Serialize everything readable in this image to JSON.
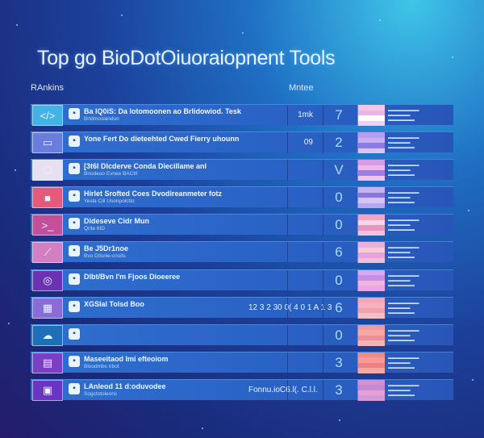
{
  "title": "Top go BioDotOiuoraiopnent Tools",
  "columns": {
    "rank": "RAnkins",
    "metric": "Mntee"
  },
  "rows": [
    {
      "icon": "code-icon",
      "thumb_bg": "#43b2e6",
      "name": "Ba IQ0iS: Da lotomoonen ao Brlidowiod. Tesk",
      "desc": "Brtdmosiandun",
      "version": "1mk",
      "digit": "7",
      "colors": [
        "#f2c6e6",
        "#e6b8e8",
        "#ffffff",
        "#f0d0f0"
      ]
    },
    {
      "icon": "monitor-icon",
      "thumb_bg": "#6a7ddc",
      "name": "Yone Fert Do dieteehted Cwed Fierry uhounn",
      "desc": "",
      "version": "09",
      "digit": "2",
      "colors": [
        "#b69df0",
        "#c7b0f2",
        "#8e7ae4",
        "#d7c6f4"
      ]
    },
    {
      "icon": "package-icon",
      "thumb_bg": "#e6e0f0",
      "name": "[3t6l Dlcderve Conda Diecillame anl",
      "desc": "Bnodeoo Evnee BACtll",
      "version": "",
      "digit": "V",
      "colors": [
        "#d69ce4",
        "#efb8ec",
        "#9b7de6",
        "#f0c2ec"
      ]
    },
    {
      "icon": "cube-icon",
      "thumb_bg": "#e55a7a",
      "name": "Hirlet Srofted Coes Dvodireanmeter fotz",
      "desc": "Yesla Cill Usonpolctto",
      "version": "",
      "digit": "0",
      "colors": [
        "#c6b2f0",
        "#8a76e0",
        "#d9c3f4",
        "#b8a6ee"
      ]
    },
    {
      "icon": "terminal-icon",
      "thumb_bg": "#c25098",
      "name": "Dideseve Cidr Mun",
      "desc": "Qrite 6ID",
      "version": "",
      "digit": "0",
      "colors": [
        "#f0a6c6",
        "#f6d6e8",
        "#e896c0",
        "#f4c0dc"
      ]
    },
    {
      "icon": "chart-icon",
      "thumb_bg": "#d47ec4",
      "name": "Be J5Dr1noe",
      "desc": "Bvo Dtlsnle-cnsits",
      "version": "",
      "digit": "6",
      "colors": [
        "#eab0dc",
        "#f6ccd8",
        "#e6a2e0",
        "#f2c0d6"
      ]
    },
    {
      "icon": "globe-icon",
      "thumb_bg": "#6b33b4",
      "name": "Dlbt/Bvn l'm Fjoos Dioeeree",
      "desc": "",
      "version": "",
      "digit": "0",
      "colors": [
        "#d9a8f0",
        "#c490e8",
        "#f0b6e0",
        "#e8a8e8"
      ]
    },
    {
      "icon": "grid-icon",
      "thumb_bg": "#8a6bd8",
      "name": "XGSIal Tolsd Boo",
      "desc": "",
      "version": "12 3 2 30 0( 4 0 1 A 1 3",
      "digit": "6",
      "colors": [
        "#f3a7b4",
        "#f6b0c0",
        "#f0a0ae",
        "#f4c0c8"
      ]
    },
    {
      "icon": "cloud-icon",
      "thumb_bg": "#1e6fb8",
      "name": "",
      "desc": "",
      "version": "",
      "digit": "0",
      "colors": [
        "#f09aa0",
        "#f6a8a6",
        "#ee8e96",
        "#f4b4b4"
      ]
    },
    {
      "icon": "api-icon",
      "thumb_bg": "#7a3fc4",
      "name": "Maseeitaod Imi efteoiom",
      "desc": "Bloodmbs trbot",
      "version": "",
      "digit": "3",
      "colors": [
        "#f08a88",
        "#f59c96",
        "#ec8086",
        "#f4a8a4"
      ]
    },
    {
      "icon": "app-icon",
      "thumb_bg": "#6a34c4",
      "name": "LAnleod 11 d:oduvodee",
      "desc": "Sogctotoleonc",
      "version": "Fonnu.ioC6.l(. C.l.l.",
      "digit": "3",
      "colors": [
        "#d98fcf",
        "#c08ad8",
        "#e6a0d6",
        "#d49ad8"
      ]
    }
  ]
}
